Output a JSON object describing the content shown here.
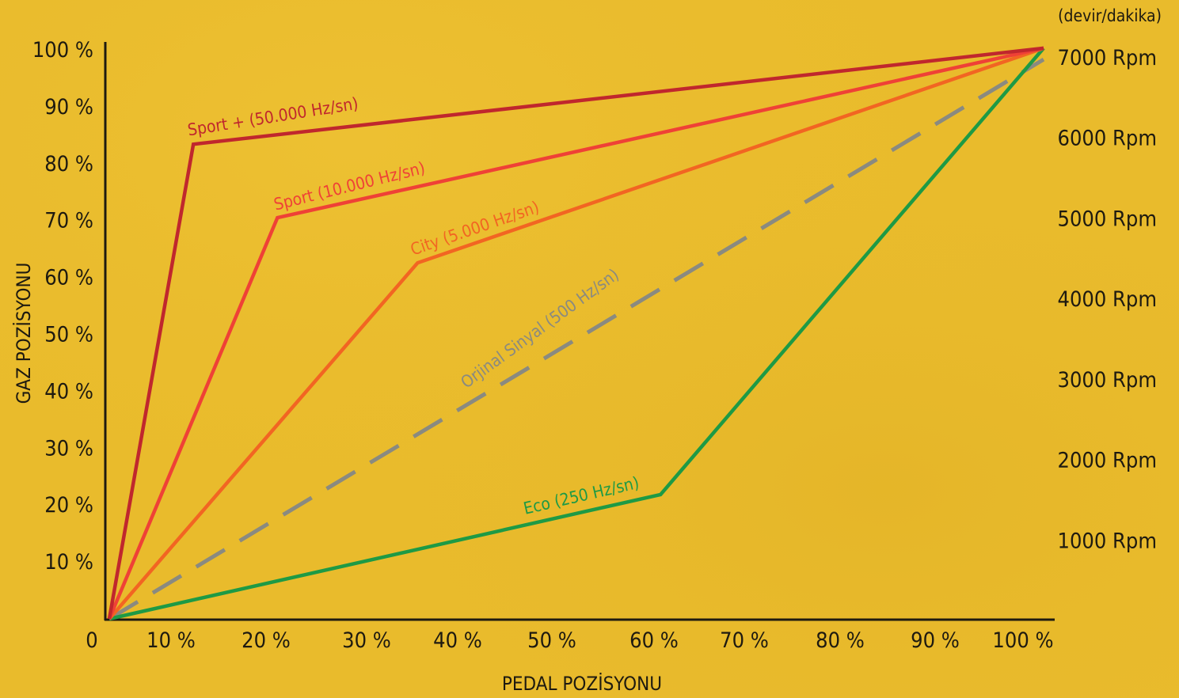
{
  "chart_data": {
    "type": "line",
    "xlabel": "PEDAL POZİSYONU",
    "ylabel": "GAZ POZİSYONU",
    "x_ticks": [
      "0",
      "10 %",
      "20 %",
      "30 %",
      "40 %",
      "50 %",
      "60 %",
      "70 %",
      "80 %",
      "90 %",
      "100 %"
    ],
    "y_ticks": [
      "10 %",
      "20 %",
      "30 %",
      "40 %",
      "50 %",
      "60 %",
      "70 %",
      "80 %",
      "90 %",
      "100 %"
    ],
    "right_axis_unit": "(devir/dakika)",
    "right_ticks": [
      "1000 Rpm",
      "2000 Rpm",
      "3000 Rpm",
      "4000 Rpm",
      "5000 Rpm",
      "6000 Rpm",
      "7000 Rpm"
    ],
    "xlim": [
      0,
      100
    ],
    "ylim": [
      0,
      100
    ],
    "y2lim": [
      0,
      7000
    ],
    "grid": false,
    "series": [
      {
        "name": "Sport + (50.000 Hz/sn)",
        "color": "#c0272d",
        "dash": false,
        "x": [
          0,
          9,
          100
        ],
        "y": [
          0,
          84,
          101
        ],
        "label_x": 8.5,
        "label_y": 85.5,
        "label_angle": -9
      },
      {
        "name": "Sport  (10.000 Hz/sn)",
        "color": "#ef4136",
        "dash": false,
        "x": [
          0,
          18,
          100
        ],
        "y": [
          0,
          71,
          101
        ],
        "label_x": 17.8,
        "label_y": 72.3,
        "label_angle": -14
      },
      {
        "name": "City  (5.000 Hz/sn)",
        "color": "#f26522",
        "dash": false,
        "x": [
          0,
          33,
          100
        ],
        "y": [
          0,
          63,
          101
        ],
        "label_x": 32.5,
        "label_y": 64.3,
        "label_angle": -19
      },
      {
        "name": "Orjinal Sinyal (500 Hz/sn)",
        "color": "#8a8a80",
        "dash": true,
        "x": [
          0,
          100
        ],
        "y": [
          0,
          99
        ],
        "label_x": 38.2,
        "label_y": 40.7,
        "label_angle": -36
      },
      {
        "name": "Eco (250 Hz/sn)",
        "color": "#1e9a45",
        "dash": false,
        "x": [
          0,
          59,
          100
        ],
        "y": [
          0,
          22,
          101
        ],
        "label_x": 44.5,
        "label_y": 18.5,
        "label_angle": -13
      }
    ]
  }
}
